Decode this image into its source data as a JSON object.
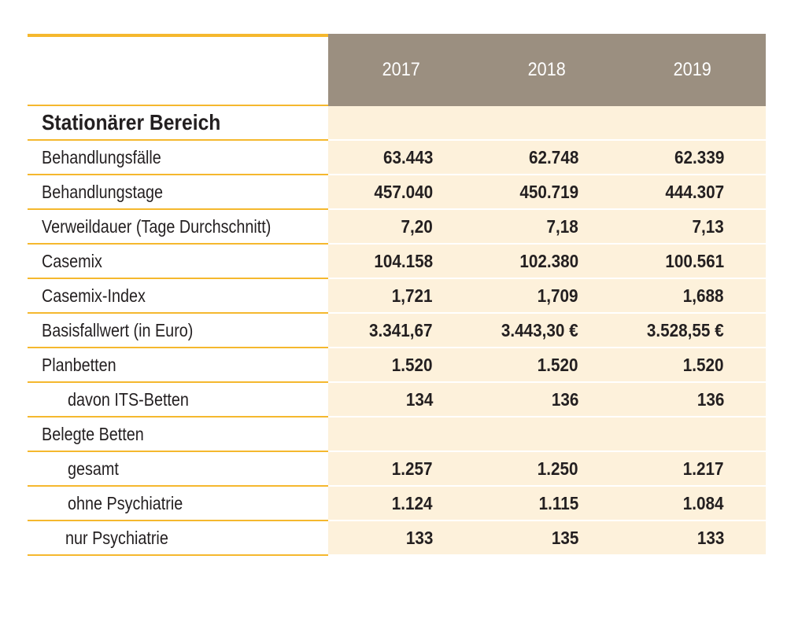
{
  "table": {
    "years": [
      "2017",
      "2018",
      "2019"
    ],
    "section_title": "Stationärer Bereich",
    "rows": [
      {
        "label": "Behandlungsfälle",
        "values": [
          "63.443",
          "62.748",
          "62.339"
        ]
      },
      {
        "label": "Behandlungstage",
        "values": [
          "457.040",
          "450.719",
          "444.307"
        ]
      },
      {
        "label": "Verweildauer (Tage Durchschnitt)",
        "values": [
          "7,20",
          "7,18",
          "7,13"
        ]
      },
      {
        "label": "Casemix",
        "values": [
          "104.158",
          "102.380",
          "100.561"
        ]
      },
      {
        "label": "Casemix-Index",
        "values": [
          "1,721",
          "1,709",
          "1,688"
        ]
      },
      {
        "label": "Basisfallwert (in Euro)",
        "values": [
          "3.341,67",
          "3.443,30 €",
          "3.528,55 €"
        ]
      },
      {
        "label": "Planbetten",
        "values": [
          "1.520",
          "1.520",
          "1.520"
        ]
      },
      {
        "label": "davon ITS-Betten",
        "values": [
          "134",
          "136",
          "136"
        ]
      },
      {
        "label": "Belegte Betten",
        "values": [
          "",
          "",
          ""
        ]
      },
      {
        "label": "gesamt",
        "values": [
          "1.257",
          "1.250",
          "1.217"
        ]
      },
      {
        "label": "ohne Psychiatrie",
        "values": [
          "1.124",
          "1.115",
          "1.084"
        ]
      },
      {
        "label": "nur Psychiatrie",
        "values": [
          "133",
          "135",
          "133"
        ]
      }
    ]
  },
  "colors": {
    "accent": "#f5b82e",
    "header_bg": "#9b8f80",
    "cell_bg": "#fdf1db"
  }
}
